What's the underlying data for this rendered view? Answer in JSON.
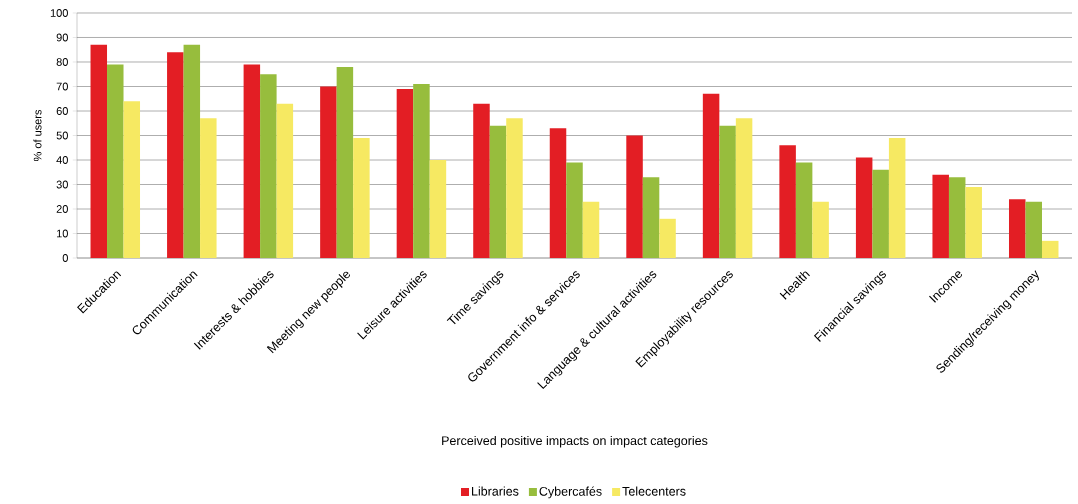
{
  "chart_data": {
    "type": "bar",
    "xlabel": "Perceived positive impacts on impact categories",
    "ylabel": "% of users",
    "categories": [
      "Education",
      "Communication",
      "Interests & hobbies",
      "Meeting new people",
      "Leisure activities",
      "Time savings",
      "Government info & services",
      "Language & cultural activities",
      "Employability resources",
      "Health",
      "Financial savings",
      "Income",
      "Sending/receiving money"
    ],
    "series": [
      {
        "name": "Libraries",
        "color": "#e31e24",
        "values": [
          87,
          84,
          79,
          70,
          69,
          63,
          53,
          50,
          67,
          46,
          41,
          34,
          24
        ]
      },
      {
        "name": "Cybercafés",
        "color": "#97bd3d",
        "values": [
          79,
          87,
          75,
          78,
          71,
          54,
          39,
          33,
          54,
          39,
          36,
          33,
          23
        ]
      },
      {
        "name": "Telecenters",
        "color": "#f6e962",
        "values": [
          64,
          57,
          63,
          49,
          40,
          57,
          23,
          16,
          57,
          23,
          49,
          29,
          7
        ]
      }
    ],
    "ylim": [
      0,
      100
    ],
    "yticks": [
      0,
      10,
      20,
      30,
      40,
      50,
      60,
      70,
      80,
      90,
      100
    ],
    "grid": "y",
    "legend": "bottom"
  }
}
